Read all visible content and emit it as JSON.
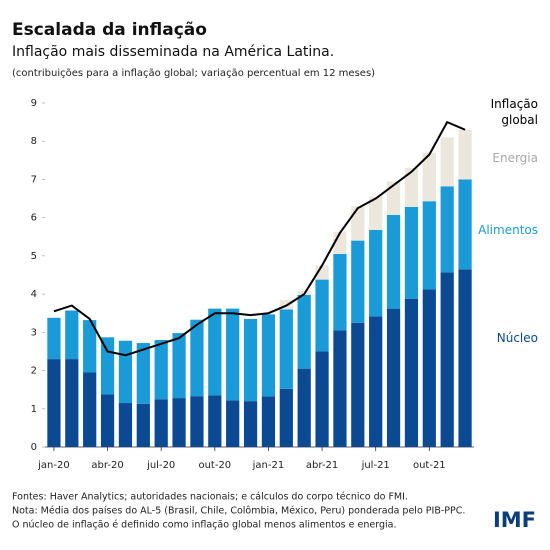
{
  "chart_data": {
    "type": "bar",
    "stacked": true,
    "title": "Escalada da inflação",
    "subtitle": "Inflação mais disseminada na América Latina.",
    "note": "(contribuições para a inflação global; variação percentual em 12 meses)",
    "categories": [
      "jan-20",
      null,
      null,
      "abr-20",
      null,
      null,
      "jul-20",
      null,
      null,
      "out-20",
      null,
      null,
      "jan-21",
      null,
      null,
      "abr-21",
      null,
      null,
      "jul-21",
      null,
      null,
      "out-21",
      null,
      null
    ],
    "series": [
      {
        "name": "Núcleo",
        "color": "#0b4a92",
        "values": [
          2.3,
          2.3,
          1.95,
          1.38,
          1.15,
          1.13,
          1.25,
          1.28,
          1.33,
          1.35,
          1.22,
          1.2,
          1.32,
          1.52,
          2.05,
          2.5,
          3.05,
          3.25,
          3.42,
          3.62,
          3.88,
          4.12,
          4.57,
          4.65
        ]
      },
      {
        "name": "Alimentos",
        "color": "#1a9bd7",
        "values": [
          1.08,
          1.27,
          1.37,
          1.49,
          1.63,
          1.59,
          1.55,
          1.7,
          2.0,
          2.27,
          2.4,
          2.15,
          2.15,
          2.08,
          1.93,
          1.88,
          2.0,
          2.15,
          2.26,
          2.45,
          2.4,
          2.31,
          2.25,
          2.35
        ]
      },
      {
        "name": "Energia",
        "color": "#ebe7dc",
        "values": [
          0,
          0,
          0,
          0,
          0,
          0,
          0,
          0,
          0,
          0,
          0,
          0,
          0,
          0.25,
          0.1,
          0.37,
          0.57,
          0.9,
          0.87,
          0.88,
          1.02,
          1.27,
          1.28,
          1.3
        ]
      },
      {
        "name": "Inflação global",
        "type": "line",
        "color": "#000000",
        "values": [
          3.55,
          3.7,
          3.35,
          2.5,
          2.4,
          2.55,
          2.7,
          2.85,
          3.2,
          3.5,
          3.5,
          3.45,
          3.5,
          3.7,
          4.0,
          4.75,
          5.6,
          6.25,
          6.5,
          6.85,
          7.2,
          7.65,
          8.5,
          8.3
        ]
      }
    ],
    "ylim": [
      0,
      9
    ],
    "yticks": [
      0,
      1,
      2,
      3,
      4,
      5,
      6,
      7,
      8,
      9
    ],
    "grid": false,
    "notes": [
      "Fontes: Haver Analytics; autoridades nacionais; e cálculos do corpo técnico do FMI.",
      "Nota: Média dos países do AL-5 (Brasil, Chile, Colômbia, México, Peru) ponderada pelo PIB-PPC.",
      "O núcleo de inflação é definido como inflação global menos alimentos e energia."
    ],
    "logo": "IMF"
  }
}
